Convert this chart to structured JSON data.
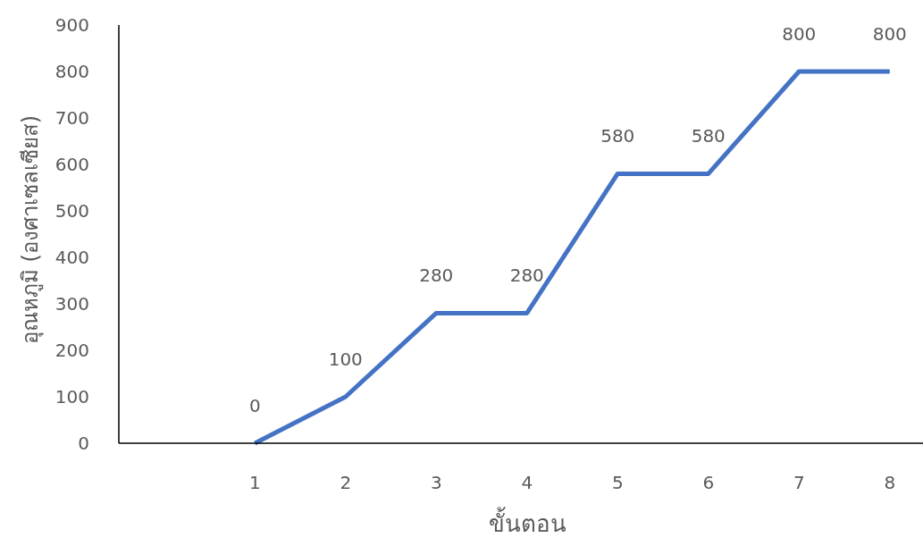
{
  "chart_data": {
    "type": "line",
    "xlabel": "ขั้นตอน",
    "ylabel": "อุณหภูมิ (องศาเซลเซียส)",
    "categories": [
      null,
      "1",
      "2",
      "3",
      "4",
      "5",
      "6",
      "7",
      "8"
    ],
    "series": [
      {
        "color": "#4472c4",
        "values": [
          null,
          0,
          100,
          280,
          280,
          580,
          580,
          800,
          800
        ]
      }
    ],
    "ylim": [
      0,
      900
    ],
    "yticks": [
      0,
      100,
      200,
      300,
      400,
      500,
      600,
      700,
      800,
      900
    ],
    "data_labels": true,
    "grid": false,
    "marker": "none",
    "line_style": "solid"
  }
}
